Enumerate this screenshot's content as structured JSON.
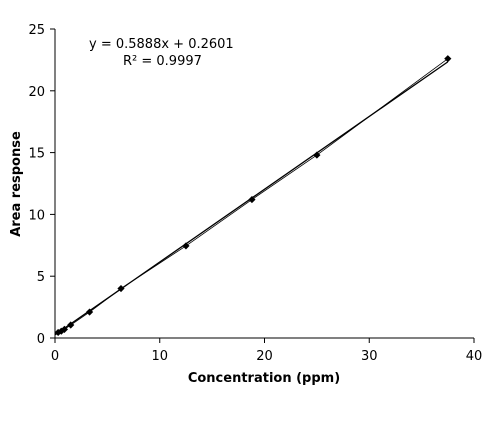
{
  "chart_data": {
    "type": "scatter",
    "title": "",
    "xlabel": "Concentration  (ppm)",
    "ylabel": "Area response",
    "xlim": [
      0,
      40
    ],
    "ylim": [
      0,
      25
    ],
    "xticks": [
      "0",
      "10",
      "20",
      "30",
      "40"
    ],
    "yticks": [
      "0",
      "5",
      "10",
      "15",
      "20",
      "25"
    ],
    "grid": false,
    "series": [
      {
        "marker": "diamond",
        "connected": true,
        "color": "#000000",
        "points": [
          {
            "x": 0.3,
            "y": 0.45
          },
          {
            "x": 0.6,
            "y": 0.55
          },
          {
            "x": 0.9,
            "y": 0.7
          },
          {
            "x": 1.5,
            "y": 1.05
          },
          {
            "x": 3.3,
            "y": 2.1
          },
          {
            "x": 6.3,
            "y": 4.0
          },
          {
            "x": 12.5,
            "y": 7.45
          },
          {
            "x": 18.8,
            "y": 11.2
          },
          {
            "x": 25.0,
            "y": 14.8
          },
          {
            "x": 37.5,
            "y": 22.6
          }
        ]
      }
    ],
    "trendline": {
      "slope": 0.5888,
      "intercept": 0.2601,
      "x_range": [
        0,
        37.5
      ],
      "equation": "y = 0.5888x  + 0.2601",
      "r2": "R² = 0.9997"
    }
  }
}
